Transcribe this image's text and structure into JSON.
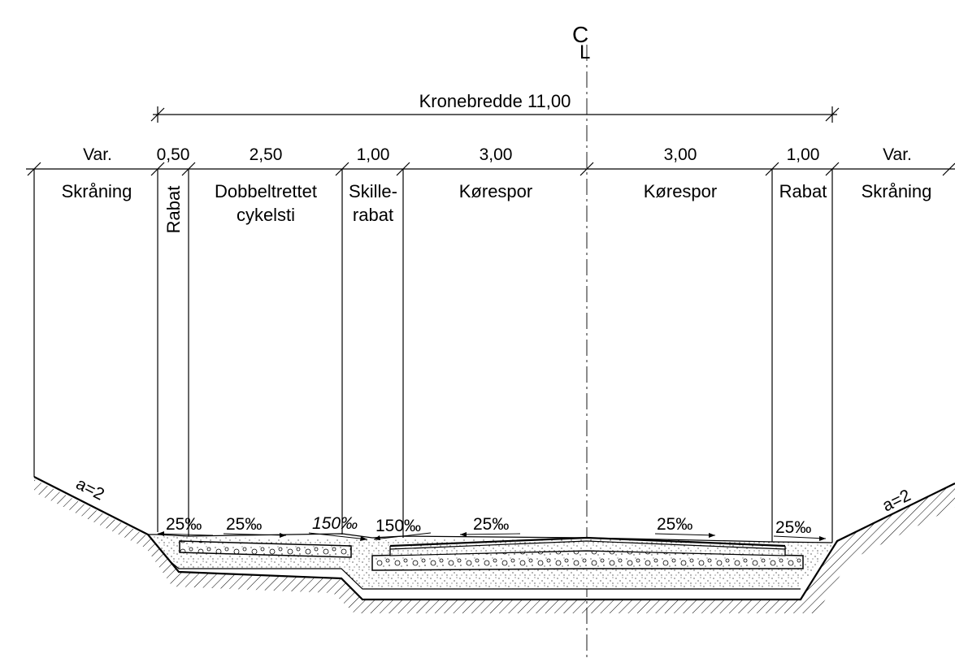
{
  "centerline": {
    "symbol_c": "C",
    "symbol_l": "L"
  },
  "overall": {
    "label": "Kronebredde 11,00"
  },
  "dimensions": [
    "Var.",
    "0,50",
    "2,50",
    "1,00",
    "3,00",
    "3,00",
    "1,00",
    "Var."
  ],
  "zones": {
    "left_slope": "Skråning",
    "rabat_left": "Rabat",
    "cycle_line1": "Dobbeltrettet",
    "cycle_line2": "cykelsti",
    "separator_line1": "Skille-",
    "separator_line2": "rabat",
    "lane_left": "Kørespor",
    "lane_right": "Kørespor",
    "rabat_right": "Rabat",
    "right_slope": "Skråning"
  },
  "slopes": {
    "rabat_left": "25‰",
    "cycle": "25‰",
    "separator_left": "150‰",
    "separator_right": "150‰",
    "lane_left": "25‰",
    "lane_right": "25‰",
    "rabat_right": "25‰"
  },
  "embankment": {
    "left": "a=2",
    "right": "a=2"
  }
}
